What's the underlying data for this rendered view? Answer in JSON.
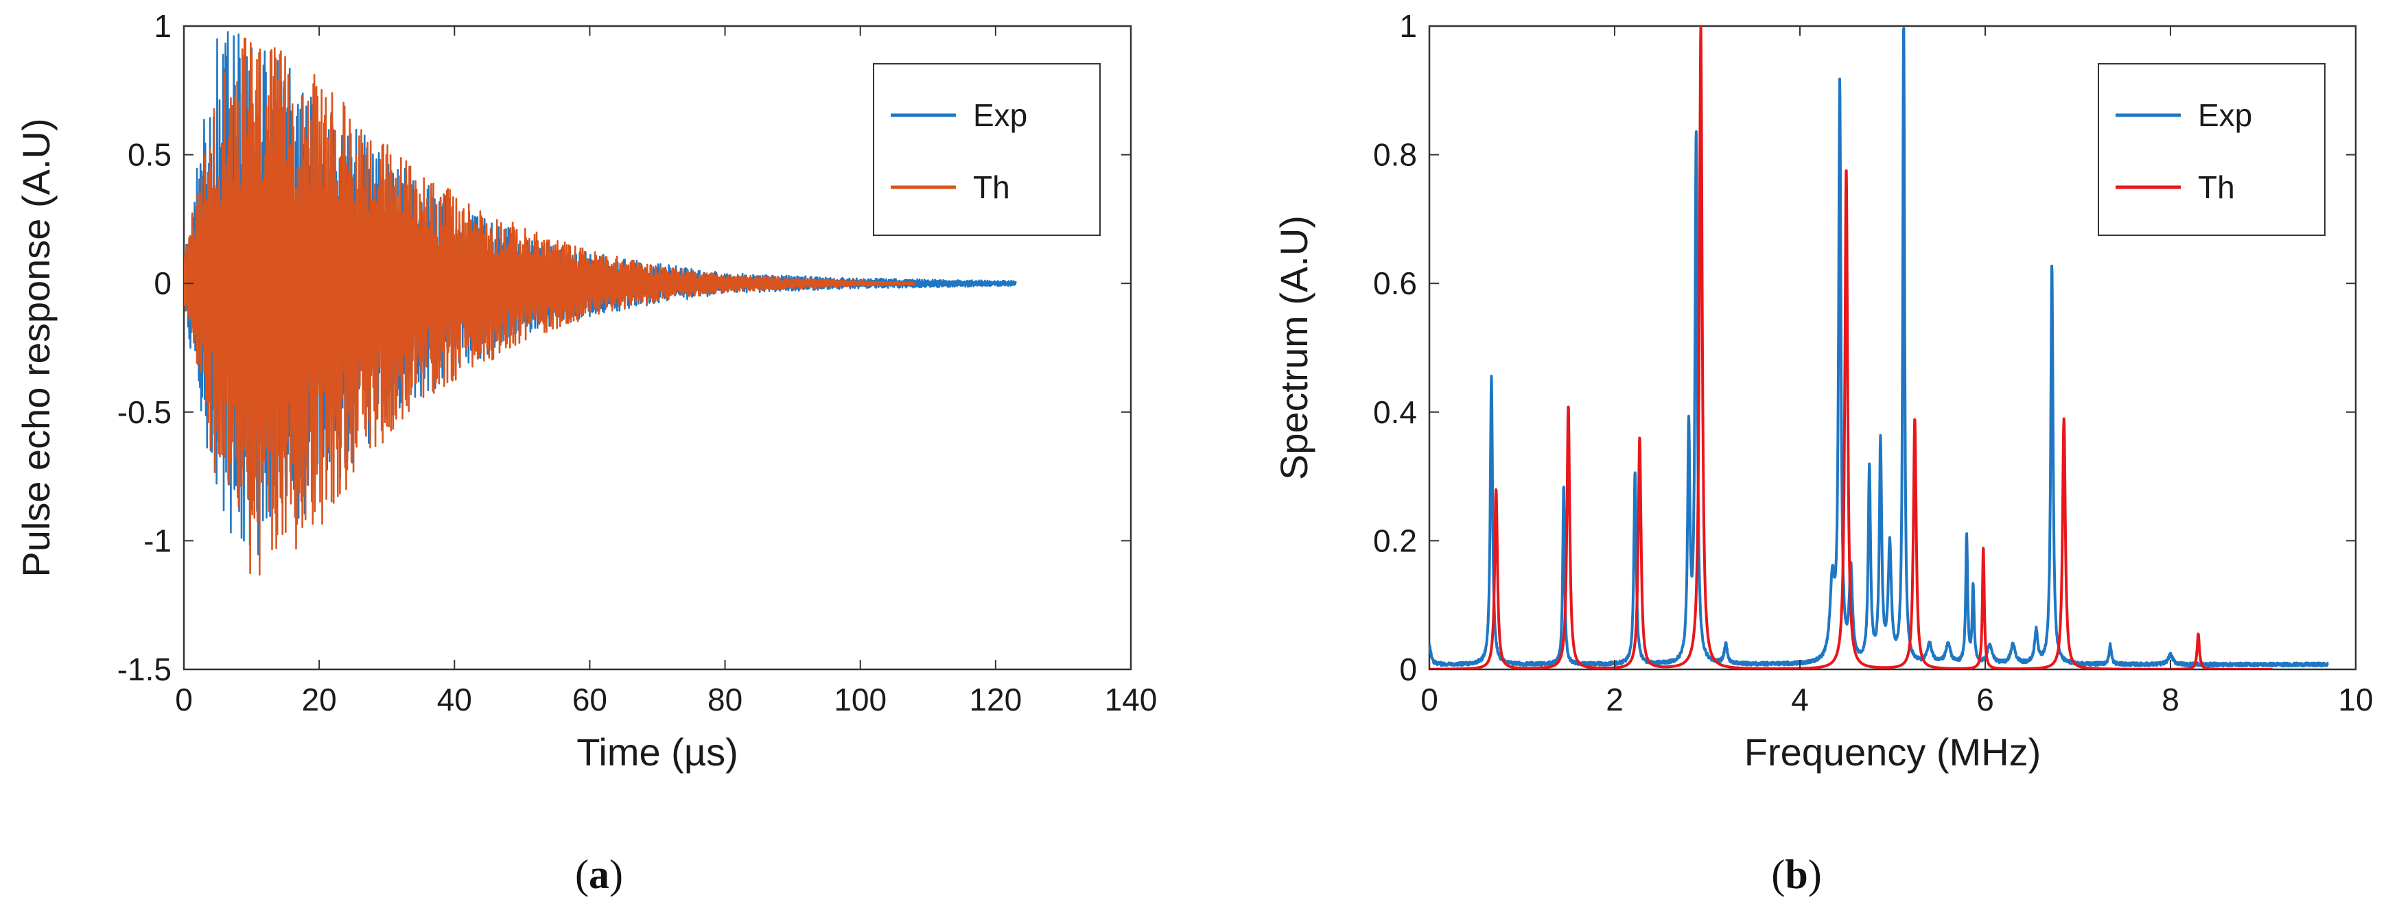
{
  "chart_data": [
    {
      "type": "line",
      "panel": "a",
      "caption_letter": "a",
      "xlabel": "Time (µs)",
      "ylabel": "Pulse echo response (A.U)",
      "xlim": [
        0,
        140
      ],
      "ylim": [
        -1.5,
        1
      ],
      "xticks": [
        "0",
        "20",
        "40",
        "60",
        "80",
        "100",
        "120",
        "140"
      ],
      "yticks": [
        "-1.5",
        "-1",
        "-0.5",
        "0",
        "0.5",
        "1"
      ],
      "grid": false,
      "legend": "top-right",
      "series": [
        {
          "name": "Exp",
          "color": "#1f77c4",
          "signal": "damped oscillation",
          "x_range": [
            0,
            123
          ],
          "peak_envelope": [
            [
              0,
              0.1
            ],
            [
              5,
              1.0
            ],
            [
              10,
              0.95
            ],
            [
              20,
              0.75
            ],
            [
              30,
              0.5
            ],
            [
              40,
              0.32
            ],
            [
              50,
              0.2
            ],
            [
              60,
              0.12
            ],
            [
              70,
              0.08
            ],
            [
              80,
              0.04
            ],
            [
              100,
              0.02
            ],
            [
              123,
              0.01
            ]
          ],
          "min_envelope": [
            [
              0,
              -0.1
            ],
            [
              5,
              -0.9
            ],
            [
              10,
              -1.1
            ],
            [
              20,
              -0.85
            ],
            [
              30,
              -0.55
            ],
            [
              40,
              -0.35
            ],
            [
              50,
              -0.2
            ],
            [
              60,
              -0.13
            ],
            [
              70,
              -0.08
            ],
            [
              80,
              -0.04
            ],
            [
              100,
              -0.02
            ],
            [
              123,
              -0.01
            ]
          ]
        },
        {
          "name": "Th",
          "color": "#d9541e",
          "signal": "damped oscillation",
          "x_range": [
            0,
            108
          ],
          "peak_envelope": [
            [
              0,
              0.1
            ],
            [
              5,
              0.8
            ],
            [
              9,
              1.0
            ],
            [
              20,
              0.8
            ],
            [
              30,
              0.55
            ],
            [
              40,
              0.35
            ],
            [
              50,
              0.22
            ],
            [
              60,
              0.13
            ],
            [
              70,
              0.07
            ],
            [
              80,
              0.035
            ],
            [
              100,
              0.01
            ],
            [
              108,
              0.005
            ]
          ],
          "min_envelope": [
            [
              0,
              -0.1
            ],
            [
              5,
              -0.8
            ],
            [
              10,
              -1.22
            ],
            [
              20,
              -0.95
            ],
            [
              30,
              -0.6
            ],
            [
              40,
              -0.38
            ],
            [
              50,
              -0.23
            ],
            [
              60,
              -0.13
            ],
            [
              70,
              -0.07
            ],
            [
              80,
              -0.035
            ],
            [
              100,
              -0.01
            ],
            [
              108,
              -0.005
            ]
          ]
        }
      ]
    },
    {
      "type": "line",
      "panel": "b",
      "caption_letter": "b",
      "xlabel": "Frequency (MHz)",
      "ylabel": "Spectrum (A.U)",
      "xlim": [
        0,
        10
      ],
      "ylim": [
        0,
        1
      ],
      "xticks": [
        "0",
        "2",
        "4",
        "6",
        "8",
        "10"
      ],
      "yticks": [
        "0",
        "0.2",
        "0.4",
        "0.6",
        "0.8",
        "1"
      ],
      "grid": false,
      "legend": "top-right",
      "series": [
        {
          "name": "Exp",
          "color": "#1f77c4",
          "x_range": [
            0,
            9.7
          ],
          "baseline": 0.005,
          "peaks": [
            {
              "f": 0.0,
              "a": 0.03,
              "w": 0.02
            },
            {
              "f": 0.67,
              "a": 0.45,
              "w": 0.015
            },
            {
              "f": 1.45,
              "a": 0.28,
              "w": 0.012
            },
            {
              "f": 2.22,
              "a": 0.3,
              "w": 0.015
            },
            {
              "f": 2.8,
              "a": 0.36,
              "w": 0.015
            },
            {
              "f": 2.88,
              "a": 0.82,
              "w": 0.015
            },
            {
              "f": 3.2,
              "a": 0.03,
              "w": 0.02
            },
            {
              "f": 4.35,
              "a": 0.12,
              "w": 0.03
            },
            {
              "f": 4.43,
              "a": 0.89,
              "w": 0.015
            },
            {
              "f": 4.55,
              "a": 0.14,
              "w": 0.02
            },
            {
              "f": 4.75,
              "a": 0.3,
              "w": 0.015
            },
            {
              "f": 4.87,
              "a": 0.34,
              "w": 0.015
            },
            {
              "f": 4.97,
              "a": 0.18,
              "w": 0.02
            },
            {
              "f": 5.12,
              "a": 1.0,
              "w": 0.012
            },
            {
              "f": 5.4,
              "a": 0.03,
              "w": 0.03
            },
            {
              "f": 5.6,
              "a": 0.03,
              "w": 0.03
            },
            {
              "f": 5.8,
              "a": 0.2,
              "w": 0.012
            },
            {
              "f": 5.87,
              "a": 0.12,
              "w": 0.012
            },
            {
              "f": 6.05,
              "a": 0.03,
              "w": 0.03
            },
            {
              "f": 6.3,
              "a": 0.03,
              "w": 0.03
            },
            {
              "f": 6.55,
              "a": 0.05,
              "w": 0.02
            },
            {
              "f": 6.72,
              "a": 0.62,
              "w": 0.015
            },
            {
              "f": 7.35,
              "a": 0.03,
              "w": 0.015
            },
            {
              "f": 8.0,
              "a": 0.015,
              "w": 0.03
            }
          ]
        },
        {
          "name": "Th",
          "color": "#e8171b",
          "x_range": [
            0,
            9.1
          ],
          "baseline": 0.0,
          "peaks": [
            {
              "f": 0.72,
              "a": 0.28,
              "w": 0.018
            },
            {
              "f": 1.5,
              "a": 0.41,
              "w": 0.018
            },
            {
              "f": 2.27,
              "a": 0.36,
              "w": 0.018
            },
            {
              "f": 2.93,
              "a": 1.0,
              "w": 0.018
            },
            {
              "f": 4.5,
              "a": 0.78,
              "w": 0.018
            },
            {
              "f": 5.24,
              "a": 0.39,
              "w": 0.018
            },
            {
              "f": 5.98,
              "a": 0.19,
              "w": 0.012
            },
            {
              "f": 6.85,
              "a": 0.39,
              "w": 0.018
            },
            {
              "f": 8.3,
              "a": 0.055,
              "w": 0.015
            }
          ]
        }
      ]
    }
  ]
}
